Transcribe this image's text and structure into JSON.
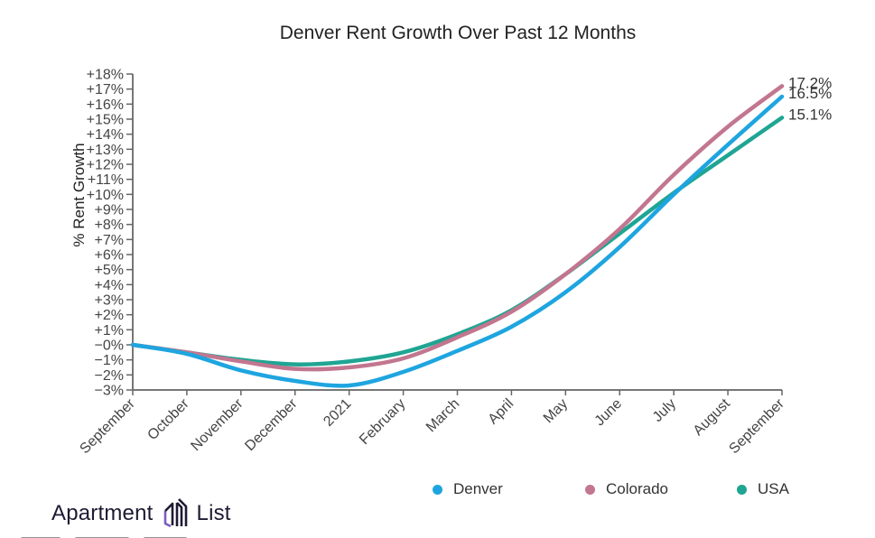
{
  "chart_data": {
    "type": "line",
    "title": "Denver Rent Growth Over Past 12 Months",
    "xlabel": "",
    "ylabel": "% Rent Growth",
    "categories": [
      "September",
      "October",
      "November",
      "December",
      "2021",
      "February",
      "March",
      "April",
      "May",
      "June",
      "July",
      "August",
      "September"
    ],
    "yticks": [
      "+18%",
      "+17%",
      "+16%",
      "+15%",
      "+14%",
      "+13%",
      "+12%",
      "+11%",
      "+10%",
      "+9%",
      "+8%",
      "+7%",
      "+6%",
      "+5%",
      "+4%",
      "+3%",
      "+2%",
      "+1%",
      "−0%",
      "−1%",
      "−2%",
      "−3%"
    ],
    "ylim": [
      -3,
      18
    ],
    "grid": false,
    "legend_position": "bottom-right",
    "series": [
      {
        "name": "Denver",
        "color": "#1ea5e0",
        "end_label": "16.5%",
        "values": [
          0,
          -0.6,
          -1.7,
          -2.4,
          -2.7,
          -1.8,
          -0.4,
          1.2,
          3.5,
          6.5,
          10.0,
          13.3,
          16.5
        ]
      },
      {
        "name": "Colorado",
        "color": "#c2768f",
        "end_label": "17.2%",
        "values": [
          0,
          -0.5,
          -1.1,
          -1.6,
          -1.5,
          -0.9,
          0.5,
          2.2,
          4.7,
          7.7,
          11.3,
          14.5,
          17.2
        ]
      },
      {
        "name": "USA",
        "color": "#1fa593",
        "end_label": "15.1%",
        "values": [
          0,
          -0.5,
          -1.0,
          -1.3,
          -1.1,
          -0.5,
          0.7,
          2.3,
          4.7,
          7.4,
          10.1,
          12.6,
          15.1
        ]
      }
    ]
  },
  "legend": {
    "items": [
      {
        "label": "Denver",
        "color": "#1ea5e0"
      },
      {
        "label": "Colorado",
        "color": "#c2768f"
      },
      {
        "label": "USA",
        "color": "#1fa593"
      }
    ]
  },
  "brand": {
    "left_text": "Apartment",
    "right_text": "List",
    "icon": "apartment-list-logo-icon",
    "icon_colors": {
      "dark": "#1e1a33",
      "accent": "#7b5cc4"
    }
  }
}
